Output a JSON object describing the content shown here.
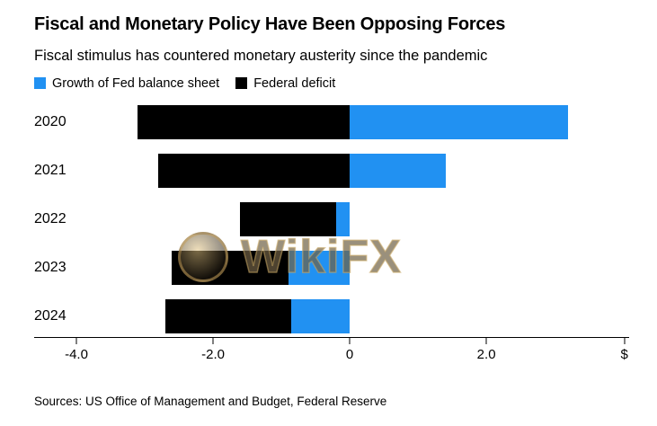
{
  "header": {
    "title": "Fiscal and Monetary Policy Have Been Opposing Forces",
    "subtitle": "Fiscal stimulus has countered monetary austerity since the pandemic"
  },
  "legend": {
    "items": [
      {
        "label": "Growth of Fed balance sheet",
        "color": "#2191f2"
      },
      {
        "label": "Federal deficit",
        "color": "#000000"
      }
    ]
  },
  "chart_data": {
    "type": "bar",
    "orientation": "horizontal",
    "stacked": true,
    "title": "Fiscal and Monetary Policy Have Been Opposing Forces",
    "subtitle": "Fiscal stimulus has countered monetary austerity since the pandemic",
    "categories": [
      "2020",
      "2021",
      "2022",
      "2023",
      "2024"
    ],
    "series": [
      {
        "name": "Growth of Fed balance sheet",
        "color": "#2191f2",
        "values": [
          3.2,
          1.4,
          -0.2,
          -0.9,
          -0.85
        ]
      },
      {
        "name": "Federal deficit",
        "color": "#000000",
        "values": [
          -3.1,
          -2.8,
          -1.4,
          -1.7,
          -1.85
        ]
      }
    ],
    "xlim": [
      -4.0,
      4.09
    ],
    "x_ticks": [
      {
        "value": -4.0,
        "label": "-4.0"
      },
      {
        "value": -2.0,
        "label": "-2.0"
      },
      {
        "value": 0,
        "label": "0"
      },
      {
        "value": 2.0,
        "label": "2.0"
      },
      {
        "value": 4.02,
        "label": "$"
      }
    ],
    "grid": false,
    "legend_position": "top"
  },
  "watermark": {
    "text": "WikiFX"
  },
  "footer": {
    "sources": "Sources: US Office of Management and Budget, Federal Reserve"
  }
}
